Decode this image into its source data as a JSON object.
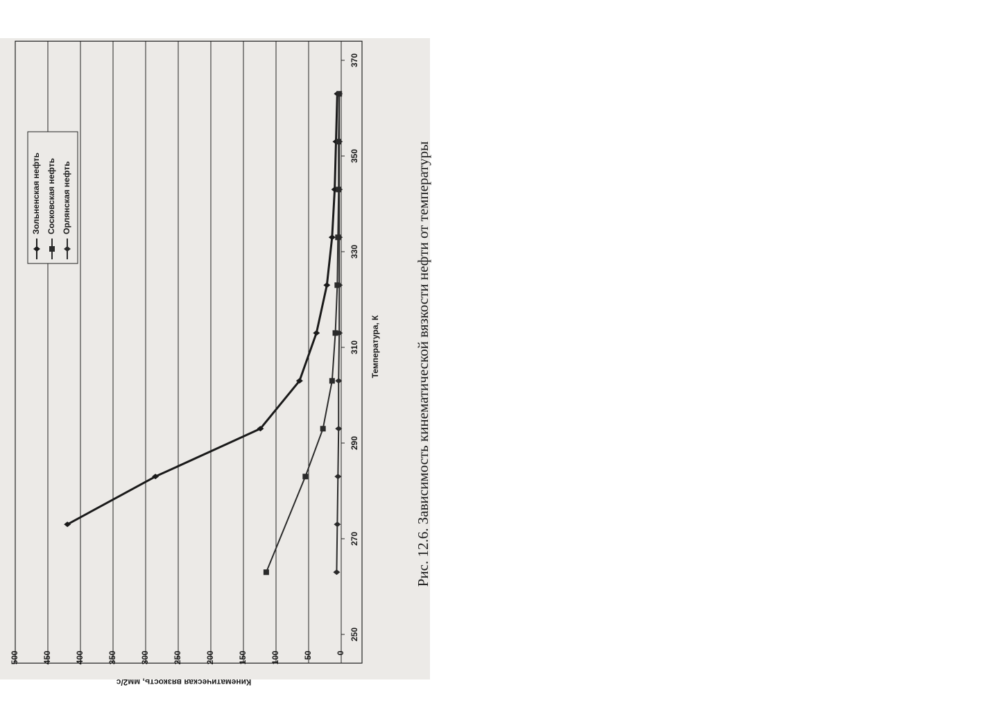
{
  "chart_data": {
    "type": "line",
    "caption": "Рис. 12.6. Зависимость кинематической вязкости нефти от температуры",
    "x_label": "Температура, К",
    "y_label": "Кинематическая вязкость, мм2/с",
    "xlim": [
      244,
      374
    ],
    "xticks": [
      250,
      270,
      290,
      310,
      330,
      350,
      370
    ],
    "ylim": [
      0,
      500
    ],
    "yticks": [
      0,
      50,
      100,
      150,
      200,
      250,
      300,
      350,
      400,
      450,
      500
    ],
    "grid": true,
    "legend": "upper left",
    "series": [
      {
        "name": "Зольненская нефть",
        "color": "#1a1a1a",
        "marker": "diamond",
        "x": [
          273,
          283,
          293,
          303,
          313,
          323,
          333,
          343,
          353,
          363
        ],
        "values": [
          420,
          285,
          124,
          64,
          38,
          22,
          14,
          10,
          8,
          6
        ]
      },
      {
        "name": "Сосковская нефть",
        "color": "#2a2a2a",
        "marker": "square",
        "x": [
          263,
          283,
          293,
          303,
          313,
          323,
          333,
          343,
          353,
          363
        ],
        "values": [
          115,
          55,
          28,
          14,
          9,
          6,
          5,
          4,
          4,
          3
        ]
      },
      {
        "name": "Орлянская нефть",
        "color": "#2a2a2a",
        "marker": "diamond",
        "x": [
          263,
          273,
          283,
          293,
          303,
          313,
          323,
          333,
          343,
          353,
          363
        ],
        "values": [
          7,
          6,
          5,
          4,
          4,
          3,
          3,
          3,
          3,
          3,
          3
        ]
      }
    ]
  }
}
